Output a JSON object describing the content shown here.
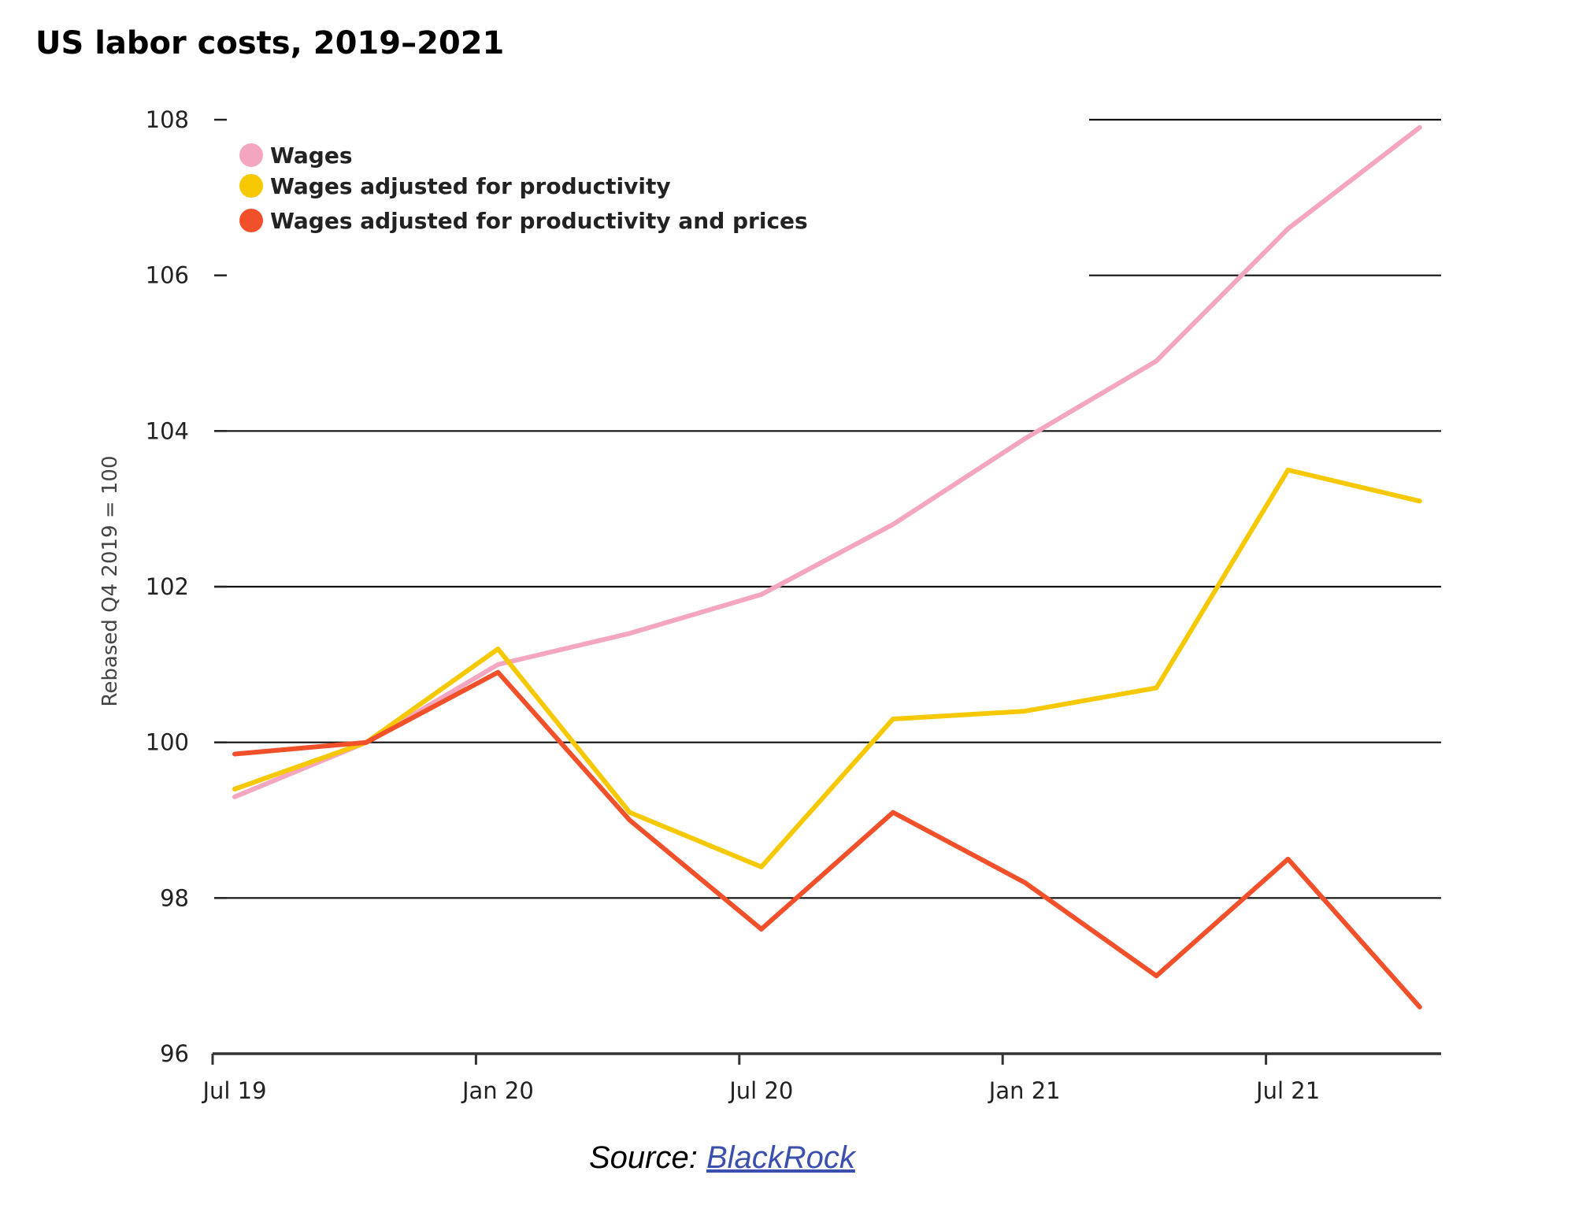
{
  "chart_data": {
    "type": "line",
    "title": "US labor costs, 2019–2021",
    "ylabel": "Rebased Q4 2019 = 100",
    "xlabel": "",
    "ylim": [
      96,
      108
    ],
    "yticks": [
      "108",
      "106",
      "104",
      "102",
      "100",
      "98",
      "96"
    ],
    "x_tick_labels": [
      "Jul 19",
      "Jan 20",
      "Jul 20",
      "Jan 21",
      "Jul 21"
    ],
    "x": [
      "Jul 19",
      "Oct 19",
      "Jan 20",
      "Apr 20",
      "Jul 20",
      "Oct 20",
      "Jan 21",
      "Apr 21",
      "Jul 21",
      "Oct 21"
    ],
    "series": [
      {
        "name": "Wages",
        "color": "#f4a6c0",
        "values": [
          99.3,
          100.0,
          101.0,
          101.4,
          101.9,
          102.8,
          103.9,
          104.9,
          106.6,
          107.9
        ]
      },
      {
        "name": "Wages adjusted for productivity",
        "color": "#f5c800",
        "values": [
          99.4,
          100.0,
          101.2,
          99.1,
          98.4,
          100.3,
          100.4,
          100.7,
          103.5,
          103.1
        ]
      },
      {
        "name": "Wages adjusted for productivity and prices",
        "color": "#f2502a",
        "values": [
          99.85,
          100.0,
          100.9,
          99.0,
          97.6,
          99.1,
          98.2,
          97.0,
          98.5,
          96.6
        ]
      }
    ],
    "grid": true,
    "legend_position": "top-left"
  },
  "source": {
    "prefix": "Source: ",
    "link_text": "BlackRock"
  }
}
